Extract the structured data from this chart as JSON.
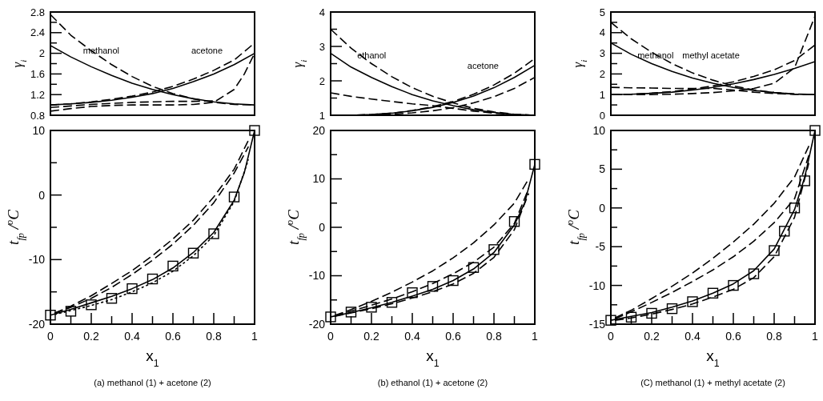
{
  "chart_data": [
    {
      "type": "line",
      "xlim": [
        0,
        1
      ],
      "ylim": [
        0.8,
        2.8
      ],
      "yticks": [
        0.8,
        {
          "value": 1,
          "label": null
        },
        1.2,
        {
          "value": 1.4,
          "label": null
        },
        1.6,
        {
          "value": 1.8,
          "label": null
        },
        2,
        {
          "value": 2.2,
          "label": null
        },
        2.4,
        {
          "value": 2.6,
          "label": null
        },
        2.8
      ],
      "tick_labels": "y",
      "ylabel": "γ$_{i}$",
      "annotations": [
        "methanol",
        "acetone"
      ],
      "series": [
        {
          "color": "#000000",
          "line_style": "solid",
          "x": [
            0,
            0.1,
            0.2,
            0.3,
            0.4,
            0.5,
            0.6,
            0.7,
            0.8,
            0.9,
            1
          ],
          "values": [
            2.15,
            1.93,
            1.74,
            1.57,
            1.42,
            1.3,
            1.2,
            1.12,
            1.06,
            1.02,
            1.0
          ]
        },
        {
          "color": "#000000",
          "line_style": "solid",
          "x": [
            0,
            0.1,
            0.2,
            0.3,
            0.4,
            0.5,
            0.6,
            0.7,
            0.8,
            0.9,
            1
          ],
          "values": [
            1.0,
            1.02,
            1.05,
            1.09,
            1.15,
            1.22,
            1.32,
            1.45,
            1.6,
            1.78,
            2.0
          ]
        },
        {
          "color": "#000000",
          "line_style": "dashed",
          "x": [
            0,
            0.1,
            0.2,
            0.3,
            0.4,
            0.5,
            0.6,
            0.7,
            0.8,
            0.9,
            1
          ],
          "values": [
            2.75,
            2.35,
            2.05,
            1.78,
            1.55,
            1.36,
            1.22,
            1.12,
            1.05,
            1.01,
            1.0
          ]
        },
        {
          "color": "#000000",
          "line_style": "dashed",
          "x": [
            0,
            0.1,
            0.2,
            0.3,
            0.4,
            0.5,
            0.6,
            0.7,
            0.8,
            0.9,
            1
          ],
          "values": [
            1.0,
            1.02,
            1.06,
            1.11,
            1.17,
            1.25,
            1.36,
            1.5,
            1.67,
            1.87,
            2.2
          ]
        },
        {
          "color": "#000000",
          "line_style": "dashed",
          "x": [
            0,
            0.1,
            0.2,
            0.3,
            0.4,
            0.5,
            0.6,
            0.7,
            0.8,
            0.9,
            0.95,
            1
          ],
          "values": [
            0.88,
            0.93,
            0.97,
            0.99,
            1.0,
            1.0,
            1.0,
            1.01,
            1.05,
            1.3,
            1.6,
            2.0
          ]
        },
        {
          "color": "#000000",
          "line_style": "dashed",
          "x": [
            0,
            0.1,
            0.2,
            0.3,
            0.4,
            0.5,
            0.6,
            0.7,
            0.8
          ],
          "values": [
            0.95,
            0.98,
            1.01,
            1.03,
            1.05,
            1.06,
            1.07,
            1.07,
            1.08
          ]
        }
      ]
    },
    {
      "type": "line",
      "xlim": [
        0,
        1
      ],
      "ylim": [
        1,
        4
      ],
      "yticks": [
        1,
        {
          "value": 1.5,
          "label": null
        },
        2,
        {
          "value": 2.5,
          "label": null
        },
        3,
        {
          "value": 3.5,
          "label": null
        },
        4
      ],
      "tick_labels": "y",
      "ylabel": "γ$_{i}$",
      "annotations": [
        "ethanol",
        "acetone"
      ],
      "series": [
        {
          "color": "#000000",
          "line_style": "solid",
          "x": [
            0,
            0.1,
            0.2,
            0.3,
            0.4,
            0.5,
            0.6,
            0.7,
            0.8,
            0.9,
            1
          ],
          "values": [
            2.8,
            2.4,
            2.1,
            1.83,
            1.6,
            1.42,
            1.28,
            1.16,
            1.08,
            1.02,
            1.0
          ]
        },
        {
          "color": "#000000",
          "line_style": "solid",
          "x": [
            0,
            0.1,
            0.2,
            0.3,
            0.4,
            0.5,
            0.6,
            0.7,
            0.8,
            0.9,
            1
          ],
          "values": [
            1.0,
            1.0,
            1.02,
            1.06,
            1.13,
            1.23,
            1.37,
            1.56,
            1.8,
            2.1,
            2.45
          ]
        },
        {
          "color": "#000000",
          "line_style": "dashed",
          "x": [
            0,
            0.1,
            0.2,
            0.3,
            0.4,
            0.5,
            0.6,
            0.7,
            0.8,
            0.9,
            1
          ],
          "values": [
            3.5,
            2.95,
            2.5,
            2.12,
            1.8,
            1.55,
            1.36,
            1.2,
            1.1,
            1.03,
            1.0
          ]
        },
        {
          "color": "#000000",
          "line_style": "dashed",
          "x": [
            0,
            0.1,
            0.2,
            0.3,
            0.4,
            0.5,
            0.6,
            0.7,
            0.8,
            0.9,
            1
          ],
          "values": [
            1.0,
            1.0,
            1.02,
            1.06,
            1.14,
            1.25,
            1.4,
            1.61,
            1.88,
            2.22,
            2.65
          ]
        },
        {
          "color": "#000000",
          "line_style": "dashed",
          "x": [
            0,
            0.1,
            0.2,
            0.3,
            0.4,
            0.5,
            0.6,
            0.7,
            0.8,
            0.9,
            1
          ],
          "values": [
            1.65,
            1.55,
            1.47,
            1.4,
            1.33,
            1.28,
            1.2,
            1.12,
            1.06,
            1.02,
            1.0
          ]
        },
        {
          "color": "#000000",
          "line_style": "dashed",
          "x": [
            0,
            0.1,
            0.2,
            0.3,
            0.4,
            0.5,
            0.6,
            0.7,
            0.8,
            0.9,
            1
          ],
          "values": [
            1.0,
            1.0,
            1.01,
            1.03,
            1.07,
            1.13,
            1.22,
            1.36,
            1.54,
            1.78,
            2.1
          ]
        }
      ]
    },
    {
      "type": "line",
      "xlim": [
        0,
        1
      ],
      "ylim": [
        0,
        5
      ],
      "yticks": [
        0,
        {
          "value": 0.5,
          "label": null
        },
        1,
        {
          "value": 1.5,
          "label": null
        },
        2,
        {
          "value": 2.5,
          "label": null
        },
        3,
        {
          "value": 3.5,
          "label": null
        },
        4,
        {
          "value": 4.5,
          "label": null
        },
        5
      ],
      "tick_labels": "y",
      "ylabel": "γ$_{i}$",
      "annotations": [
        "methanol",
        "methyl acetate"
      ],
      "series": [
        {
          "color": "#000000",
          "line_style": "solid",
          "x": [
            0,
            0.1,
            0.2,
            0.3,
            0.4,
            0.5,
            0.6,
            0.7,
            0.8,
            0.9,
            1
          ],
          "values": [
            3.5,
            2.95,
            2.5,
            2.12,
            1.8,
            1.55,
            1.35,
            1.2,
            1.1,
            1.03,
            1.0
          ]
        },
        {
          "color": "#000000",
          "line_style": "solid",
          "x": [
            0,
            0.1,
            0.2,
            0.3,
            0.4,
            0.5,
            0.6,
            0.7,
            0.8,
            0.9,
            1
          ],
          "values": [
            1.0,
            1.02,
            1.06,
            1.12,
            1.22,
            1.35,
            1.52,
            1.73,
            1.98,
            2.27,
            2.6
          ]
        },
        {
          "color": "#000000",
          "line_style": "dashed",
          "x": [
            0,
            0.1,
            0.2,
            0.3,
            0.4,
            0.5,
            0.6,
            0.7,
            0.8,
            0.9,
            1
          ],
          "values": [
            4.5,
            3.7,
            3.05,
            2.5,
            2.05,
            1.7,
            1.42,
            1.23,
            1.1,
            1.03,
            1.0
          ]
        },
        {
          "color": "#000000",
          "line_style": "dashed",
          "x": [
            0,
            0.1,
            0.2,
            0.3,
            0.4,
            0.5,
            0.6,
            0.7,
            0.8,
            0.9,
            1
          ],
          "values": [
            1.0,
            1.02,
            1.07,
            1.15,
            1.27,
            1.42,
            1.62,
            1.88,
            2.2,
            2.65,
            3.4
          ]
        },
        {
          "color": "#000000",
          "line_style": "dashed",
          "x": [
            0,
            0.1,
            0.2,
            0.3,
            0.4,
            0.5,
            0.6,
            0.7,
            0.8,
            0.9,
            1
          ],
          "values": [
            1.0,
            1.0,
            1.0,
            1.02,
            1.05,
            1.1,
            1.18,
            1.3,
            1.55,
            2.3,
            4.8
          ]
        },
        {
          "color": "#000000",
          "line_style": "dashed",
          "x": [
            0,
            0.1,
            0.2,
            0.3,
            0.4,
            0.5,
            0.6,
            0.7,
            0.8,
            0.9,
            1
          ],
          "values": [
            1.35,
            1.33,
            1.32,
            1.3,
            1.3,
            1.3,
            1.22,
            1.12,
            1.05,
            1.01,
            1.0
          ]
        }
      ]
    },
    {
      "type": "line",
      "xlim": [
        0,
        1
      ],
      "ylim": [
        -20,
        10
      ],
      "yticks": [
        -20,
        {
          "value": -15,
          "label": null
        },
        -10,
        {
          "value": -5,
          "label": null
        },
        0,
        {
          "value": 5,
          "label": null
        },
        10
      ],
      "xticks": [
        0,
        {
          "value": 0.1,
          "label": null
        },
        0.2,
        {
          "value": 0.3,
          "label": null
        },
        0.4,
        {
          "value": 0.5,
          "label": null
        },
        0.6,
        {
          "value": 0.7,
          "label": null
        },
        0.8,
        {
          "value": 0.9,
          "label": null
        },
        1
      ],
      "xlabel": "x$_{1}$",
      "ylabel": "t$_{fp}$ /$^{o}$C",
      "annotations": [
        "(a) methanol (1) + acetone (2)"
      ],
      "series": [
        {
          "type": "scatter",
          "marker": "square",
          "color": "#000000",
          "x": [
            0,
            0.1,
            0.2,
            0.3,
            0.4,
            0.5,
            0.6,
            0.7,
            0.8,
            0.9,
            1
          ],
          "values": [
            -18.6,
            -18.0,
            -17.0,
            -16.0,
            -14.5,
            -13.0,
            -11.0,
            -9.0,
            -6.0,
            -0.3,
            10
          ]
        },
        {
          "color": "#000000",
          "line_style": "solid",
          "x": [
            0,
            0.1,
            0.2,
            0.3,
            0.4,
            0.5,
            0.6,
            0.7,
            0.8,
            0.9,
            0.95,
            1
          ],
          "values": [
            -18.6,
            -17.7,
            -16.7,
            -15.7,
            -14.5,
            -13.1,
            -11.3,
            -8.9,
            -5.8,
            -0.8,
            3.5,
            10
          ]
        },
        {
          "color": "#000000",
          "line_style": "dotted",
          "x": [
            0.02,
            0.1,
            0.2,
            0.3,
            0.4,
            0.5,
            0.6,
            0.7,
            0.8,
            0.9,
            0.97
          ],
          "values": [
            -18.5,
            -17.9,
            -17.1,
            -16.2,
            -15.0,
            -13.6,
            -11.8,
            -9.4,
            -6.3,
            -1.0,
            5.5
          ]
        },
        {
          "color": "#000000",
          "line_style": "dashed",
          "x": [
            0.02,
            0.1,
            0.2,
            0.3,
            0.4,
            0.5,
            0.6,
            0.7,
            0.8,
            0.9,
            0.97
          ],
          "values": [
            -18.3,
            -17.4,
            -16.0,
            -14.3,
            -12.3,
            -10.1,
            -7.6,
            -4.7,
            -1.2,
            3.4,
            7.5
          ]
        },
        {
          "color": "#000000",
          "line_style": "dashed",
          "x": [
            0.02,
            0.1,
            0.2,
            0.3,
            0.4,
            0.5,
            0.6,
            0.7,
            0.8,
            0.9,
            0.97
          ],
          "values": [
            -18.3,
            -17.2,
            -15.6,
            -13.7,
            -11.7,
            -9.4,
            -6.8,
            -3.9,
            -0.3,
            4.0,
            8.5
          ]
        }
      ]
    },
    {
      "type": "line",
      "xlim": [
        0,
        1
      ],
      "ylim": [
        -20,
        20
      ],
      "yticks": [
        -20,
        {
          "value": -15,
          "label": null
        },
        -10,
        {
          "value": -5,
          "label": null
        },
        0,
        {
          "value": 5,
          "label": null
        },
        10,
        {
          "value": 15,
          "label": null
        },
        20
      ],
      "xticks": [
        0,
        {
          "value": 0.1,
          "label": null
        },
        0.2,
        {
          "value": 0.3,
          "label": null
        },
        0.4,
        {
          "value": 0.5,
          "label": null
        },
        0.6,
        {
          "value": 0.7,
          "label": null
        },
        0.8,
        {
          "value": 0.9,
          "label": null
        },
        1
      ],
      "xlabel": "x$_{1}$",
      "ylabel": "t$_{fp}$ /$^{o}$C",
      "annotations": [
        "(b) ethanol (1) + acetone (2)"
      ],
      "series": [
        {
          "type": "scatter",
          "marker": "square",
          "color": "#000000",
          "x": [
            0,
            0.1,
            0.2,
            0.3,
            0.4,
            0.5,
            0.6,
            0.7,
            0.8,
            0.9,
            1
          ],
          "values": [
            -18.5,
            -17.5,
            -16.5,
            -15.5,
            -13.5,
            -12.2,
            -11.0,
            -8.3,
            -4.6,
            1.2,
            13.0
          ]
        },
        {
          "color": "#000000",
          "line_style": "solid",
          "x": [
            0,
            0.1,
            0.2,
            0.3,
            0.4,
            0.5,
            0.6,
            0.7,
            0.8,
            0.9,
            0.95,
            1
          ],
          "values": [
            -18.5,
            -17.6,
            -16.6,
            -15.5,
            -14.2,
            -12.8,
            -11.0,
            -8.6,
            -5.2,
            0.5,
            5.0,
            13
          ]
        },
        {
          "color": "#000000",
          "line_style": "dashed",
          "x": [
            0.02,
            0.1,
            0.2,
            0.3,
            0.4,
            0.5,
            0.6,
            0.7,
            0.8,
            0.9,
            0.97
          ],
          "values": [
            -18.4,
            -17.7,
            -16.8,
            -15.8,
            -14.6,
            -13.3,
            -11.7,
            -9.5,
            -6.2,
            -0.5,
            7.0
          ]
        },
        {
          "color": "#000000",
          "line_style": "dashed",
          "x": [
            0.02,
            0.1,
            0.2,
            0.3,
            0.4,
            0.5,
            0.6,
            0.7,
            0.8,
            0.9,
            0.97
          ],
          "values": [
            -18.3,
            -17.3,
            -16.1,
            -14.8,
            -13.3,
            -11.6,
            -9.6,
            -7.2,
            -4.1,
            0.8,
            8.0
          ]
        },
        {
          "color": "#000000",
          "line_style": "dashed",
          "x": [
            0.02,
            0.1,
            0.2,
            0.3,
            0.4,
            0.5,
            0.6,
            0.7,
            0.8,
            0.9,
            0.97
          ],
          "values": [
            -18.2,
            -17.0,
            -15.3,
            -13.4,
            -11.3,
            -9.0,
            -6.3,
            -3.2,
            0.5,
            5.0,
            10.0
          ]
        }
      ]
    },
    {
      "type": "line",
      "xlim": [
        0,
        1
      ],
      "ylim": [
        -15,
        10
      ],
      "yticks": [
        -15,
        {
          "value": -12.5,
          "label": null
        },
        -10,
        {
          "value": -7.5,
          "label": null
        },
        -5,
        {
          "value": -2.5,
          "label": null
        },
        0,
        {
          "value": 2.5,
          "label": null
        },
        5,
        {
          "value": 7.5,
          "label": null
        },
        10
      ],
      "xticks": [
        0,
        {
          "value": 0.1,
          "label": null
        },
        0.2,
        {
          "value": 0.3,
          "label": null
        },
        0.4,
        {
          "value": 0.5,
          "label": null
        },
        0.6,
        {
          "value": 0.7,
          "label": null
        },
        0.8,
        {
          "value": 0.9,
          "label": null
        },
        1
      ],
      "xlabel": "x$_{1}$",
      "ylabel": "t$_{fp}$ /$^{o}$C",
      "annotations": [
        "(C) methanol (1) + methyl acetate (2)"
      ],
      "series": [
        {
          "type": "scatter",
          "marker": "square",
          "color": "#000000",
          "x": [
            0,
            0.1,
            0.2,
            0.3,
            0.4,
            0.5,
            0.6,
            0.7,
            0.8,
            0.85,
            0.9,
            0.95,
            1
          ],
          "values": [
            -14.5,
            -14.1,
            -13.6,
            -13.0,
            -12.1,
            -11.0,
            -10.0,
            -8.5,
            -5.5,
            -3.0,
            0.0,
            3.5,
            10
          ]
        },
        {
          "color": "#000000",
          "line_style": "solid",
          "x": [
            0,
            0.1,
            0.2,
            0.3,
            0.4,
            0.5,
            0.6,
            0.7,
            0.8,
            0.9,
            0.95,
            1
          ],
          "values": [
            -14.5,
            -14.0,
            -13.5,
            -12.8,
            -12.0,
            -11.0,
            -9.8,
            -8.1,
            -5.3,
            -0.2,
            4.0,
            10
          ]
        },
        {
          "color": "#000000",
          "line_style": "dashed",
          "x": [
            0.02,
            0.1,
            0.2,
            0.3,
            0.4,
            0.5,
            0.6,
            0.7,
            0.8,
            0.9,
            0.97
          ],
          "values": [
            -14.5,
            -14.2,
            -13.7,
            -13.1,
            -12.4,
            -11.5,
            -10.5,
            -9.0,
            -6.3,
            -1.2,
            5.8
          ]
        },
        {
          "color": "#000000",
          "line_style": "dashed",
          "x": [
            0.02,
            0.1,
            0.2,
            0.3,
            0.4,
            0.5,
            0.6,
            0.7,
            0.8,
            0.9,
            0.97
          ],
          "values": [
            -14.3,
            -13.4,
            -12.2,
            -10.9,
            -9.5,
            -8.0,
            -6.3,
            -4.3,
            -1.9,
            1.2,
            6.8
          ]
        },
        {
          "color": "#000000",
          "line_style": "dashed",
          "x": [
            0.02,
            0.1,
            0.2,
            0.3,
            0.4,
            0.5,
            0.6,
            0.7,
            0.8,
            0.9,
            0.97
          ],
          "values": [
            -14.2,
            -13.2,
            -11.7,
            -10.1,
            -8.4,
            -6.5,
            -4.4,
            -2.1,
            0.6,
            4.0,
            8.0
          ]
        }
      ]
    }
  ]
}
